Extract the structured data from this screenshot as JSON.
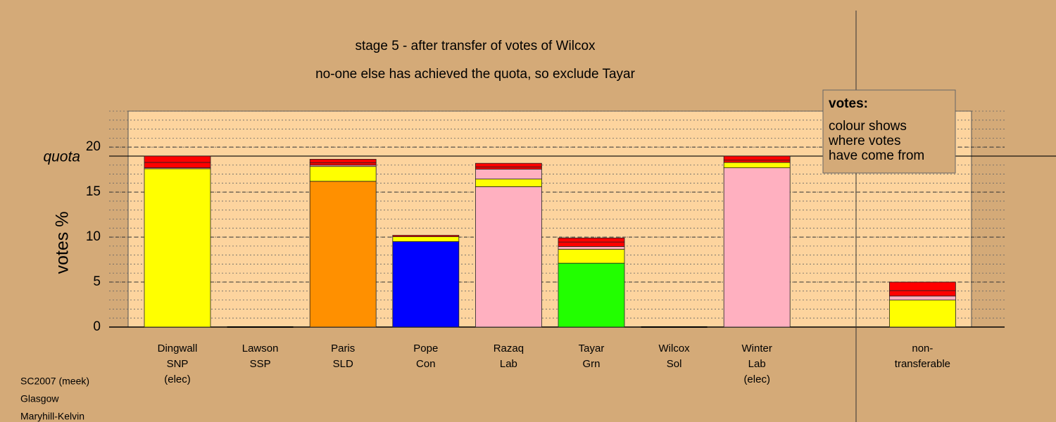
{
  "chart_data": {
    "type": "stacked_bar",
    "title": "stage 5 - after transfer of votes of Wilcox",
    "subtitle": "no-one else has achieved the quota, so exclude Tayar",
    "ylabel": "votes %",
    "categories": [
      [
        "Dingwall",
        "SNP",
        "(elec)"
      ],
      [
        "Lawson",
        "SSP"
      ],
      [
        "Paris",
        "SLD"
      ],
      [
        "Pope",
        "Con"
      ],
      [
        "Razaq",
        "Lab"
      ],
      [
        "Tayar",
        "Grn"
      ],
      [
        "Wilcox",
        "Sol"
      ],
      [
        "Winter",
        "Lab",
        "(elec)"
      ],
      null,
      [
        "non-",
        "transferable"
      ]
    ],
    "series": [
      {
        "colors": [
          "#ffff00",
          "#ffff00",
          "#ff9000",
          "#0000ff",
          "#ffb0c0",
          "#22ff00",
          "#ffff00",
          "#ffb0c0",
          null,
          "#ffff00"
        ],
        "values": [
          17.6,
          0,
          16.2,
          9.5,
          15.6,
          7.1,
          0,
          17.7,
          null,
          3.0
        ]
      },
      {
        "color": "#ffff00",
        "values": [
          0,
          0,
          1.65,
          0.55,
          0.85,
          1.55,
          0,
          0.6,
          null,
          0
        ]
      },
      {
        "color": "#ffb0c0",
        "values": [
          0.1,
          0,
          0.15,
          0,
          1.1,
          0.3,
          0,
          0,
          null,
          0.45
        ]
      },
      {
        "color": "#ff0000",
        "values": [
          0.6,
          0,
          0.25,
          0.15,
          0.25,
          0.5,
          0,
          0.25,
          null,
          0.6
        ]
      },
      {
        "color": "#ff0000",
        "values": [
          0.7,
          0,
          0.4,
          0,
          0.4,
          0.45,
          0,
          0.45,
          null,
          0.95
        ]
      }
    ],
    "quota": 19.0,
    "quota_label": "quota",
    "ylim": [
      0,
      24
    ],
    "yticks": [
      0,
      5,
      10,
      15,
      20
    ],
    "minor_step": 1,
    "grid": true,
    "legend": {
      "title": "votes:",
      "lines": [
        "colour shows",
        "where votes",
        "have come from"
      ]
    },
    "footer": [
      "SC2007 (meek)",
      "Glasgow",
      "Maryhill-Kelvin"
    ]
  }
}
